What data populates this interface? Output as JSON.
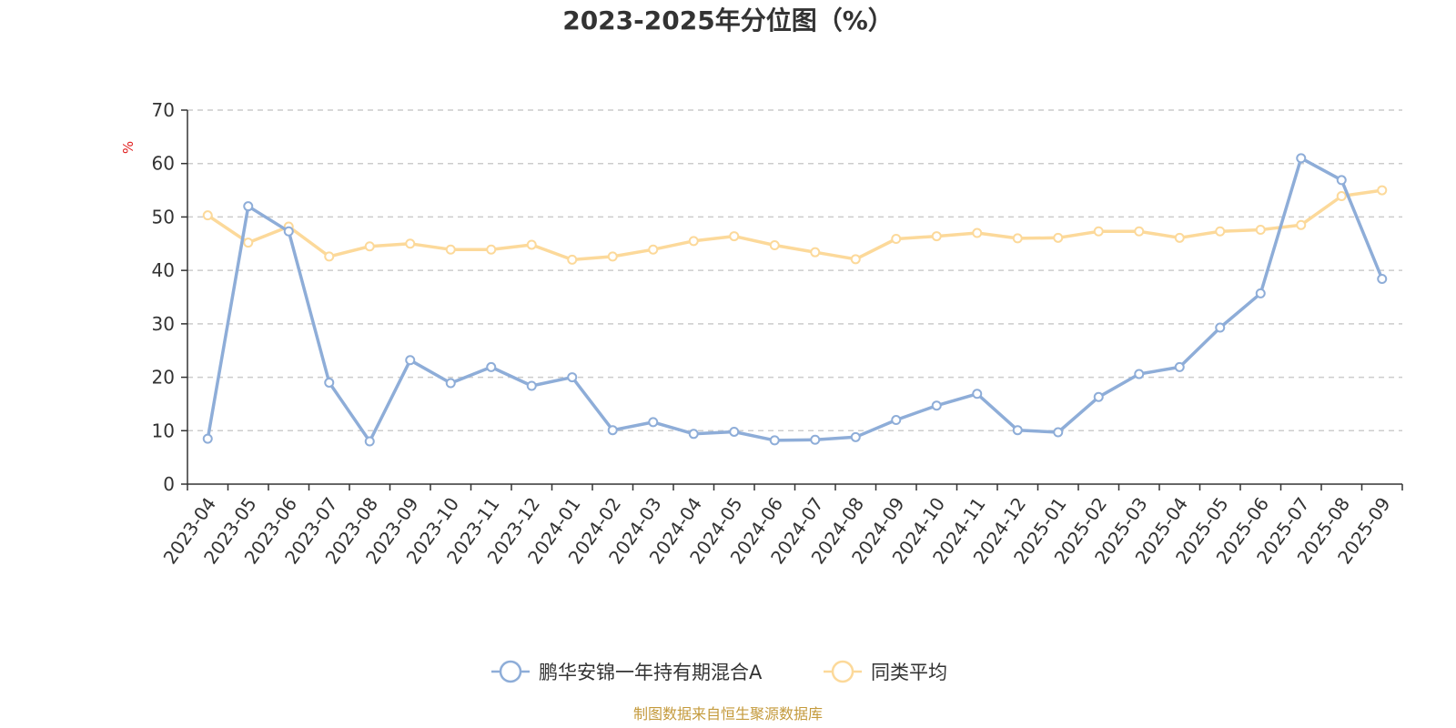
{
  "chart_data": {
    "type": "line",
    "title": "2023-2025年分位图（%）",
    "ylabel": "%",
    "ylim": [
      0,
      70
    ],
    "yticks": [
      0,
      10,
      20,
      30,
      40,
      50,
      60,
      70
    ],
    "grid": true,
    "legend_position": "bottom",
    "categories": [
      "2023-04",
      "2023-05",
      "2023-06",
      "2023-07",
      "2023-08",
      "2023-09",
      "2023-10",
      "2023-11",
      "2023-12",
      "2024-01",
      "2024-02",
      "2024-03",
      "2024-04",
      "2024-05",
      "2024-06",
      "2024-07",
      "2024-08",
      "2024-09",
      "2024-10",
      "2024-11",
      "2024-12",
      "2025-01",
      "2025-02",
      "2025-03",
      "2025-04",
      "2025-05",
      "2025-06",
      "2025-07",
      "2025-08",
      "2025-09"
    ],
    "series": [
      {
        "name": "鹏华安锦一年持有期混合A",
        "color": "#8eadd8",
        "values": [
          8.5,
          52,
          47.3,
          19,
          8,
          23.2,
          18.9,
          21.9,
          18.4,
          20,
          10.1,
          11.6,
          9.4,
          9.8,
          8.2,
          8.3,
          8.8,
          12,
          14.7,
          16.9,
          10.1,
          9.7,
          16.3,
          20.6,
          21.9,
          29.3,
          35.7,
          61,
          56.9,
          38.4
        ]
      },
      {
        "name": "同类平均",
        "color": "#fcd99a",
        "values": [
          50.3,
          45.2,
          48.2,
          42.6,
          44.5,
          45,
          43.9,
          43.9,
          44.8,
          42,
          42.6,
          43.9,
          45.5,
          46.4,
          44.7,
          43.4,
          42.1,
          45.9,
          46.4,
          47,
          46,
          46.1,
          47.3,
          47.3,
          46.1,
          47.3,
          47.6,
          48.5,
          53.9,
          55
        ]
      }
    ]
  },
  "source": {
    "text": "制图数据来自恒生聚源数据库",
    "color": "#c49a3c"
  },
  "unit_color": "#e02020"
}
